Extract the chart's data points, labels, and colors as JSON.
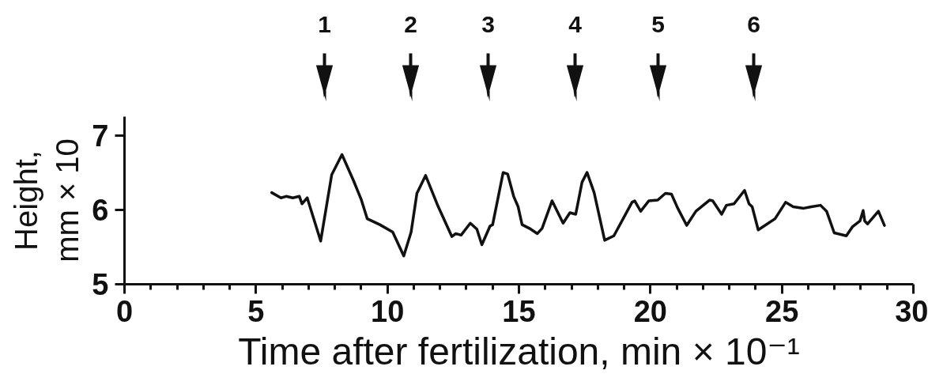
{
  "chart_data": {
    "type": "line",
    "xlabel": "Time after fertilization, min × 10⁻¹",
    "ylabel": "Height, mm × 10",
    "xlim": [
      0,
      30
    ],
    "xticks": [
      0,
      {
        "value": 1,
        "label": null
      },
      {
        "value": 2,
        "label": null
      },
      {
        "value": 3,
        "label": null
      },
      {
        "value": 4,
        "label": null
      },
      5,
      {
        "value": 6,
        "label": null
      },
      {
        "value": 7,
        "label": null
      },
      {
        "value": 8,
        "label": null
      },
      {
        "value": 9,
        "label": null
      },
      10,
      {
        "value": 11,
        "label": null
      },
      {
        "value": 12,
        "label": null
      },
      {
        "value": 13,
        "label": null
      },
      {
        "value": 14,
        "label": null
      },
      15,
      {
        "value": 16,
        "label": null
      },
      {
        "value": 17,
        "label": null
      },
      {
        "value": 18,
        "label": null
      },
      {
        "value": 19,
        "label": null
      },
      20,
      {
        "value": 21,
        "label": null
      },
      {
        "value": 22,
        "label": null
      },
      {
        "value": 23,
        "label": null
      },
      {
        "value": 24,
        "label": null
      },
      25,
      {
        "value": 26,
        "label": null
      },
      {
        "value": 27,
        "label": null
      },
      {
        "value": 28,
        "label": null
      },
      {
        "value": 29,
        "label": null
      },
      30
    ],
    "ylim": [
      5,
      7.25
    ],
    "yticks": [
      5,
      6,
      7
    ],
    "color": "#111111",
    "x": [
      5.6,
      5.95,
      6.15,
      6.4,
      6.65,
      6.75,
      6.95,
      7.0,
      7.46,
      7.88,
      8.27,
      8.71,
      9.0,
      9.23,
      9.71,
      10.2,
      10.62,
      10.9,
      11.12,
      11.45,
      11.92,
      12.45,
      12.6,
      12.8,
      13.15,
      13.4,
      13.59,
      13.9,
      14.0,
      14.4,
      14.57,
      14.8,
      14.97,
      15.12,
      15.4,
      15.7,
      15.88,
      16.26,
      16.68,
      16.94,
      17.16,
      17.4,
      17.59,
      17.86,
      18.26,
      18.61,
      19.3,
      19.4,
      19.63,
      19.94,
      20.28,
      20.57,
      20.8,
      21.04,
      21.38,
      21.73,
      22.25,
      22.37,
      22.71,
      22.89,
      23.18,
      23.58,
      23.75,
      23.87,
      24.1,
      24.27,
      24.74,
      25.14,
      25.43,
      25.83,
      26.12,
      26.47,
      26.7,
      26.99,
      27.45,
      27.68,
      27.97,
      28.09,
      28.15,
      28.26,
      28.67,
      28.9
    ],
    "values": [
      6.23,
      6.16,
      6.18,
      6.16,
      6.18,
      6.08,
      6.16,
      6.1,
      5.58,
      6.47,
      6.74,
      6.39,
      6.14,
      5.88,
      5.8,
      5.7,
      5.38,
      5.7,
      6.22,
      6.46,
      6.05,
      5.64,
      5.68,
      5.66,
      5.82,
      5.74,
      5.53,
      5.78,
      5.8,
      6.5,
      6.48,
      6.18,
      6.04,
      5.8,
      5.75,
      5.68,
      5.75,
      6.12,
      5.82,
      5.96,
      5.94,
      6.37,
      6.5,
      6.23,
      5.59,
      5.65,
      6.1,
      6.12,
      5.98,
      6.12,
      6.13,
      6.22,
      6.21,
      6.02,
      5.79,
      5.98,
      6.13,
      6.12,
      5.94,
      6.06,
      6.08,
      6.26,
      6.08,
      6.04,
      5.73,
      5.77,
      5.88,
      6.1,
      6.04,
      6.02,
      6.04,
      6.06,
      5.98,
      5.69,
      5.65,
      5.77,
      5.85,
      5.99,
      5.85,
      5.81,
      5.98,
      5.79
    ],
    "annotations": [
      "1",
      "2",
      "3",
      "4",
      "5",
      "6"
    ]
  }
}
